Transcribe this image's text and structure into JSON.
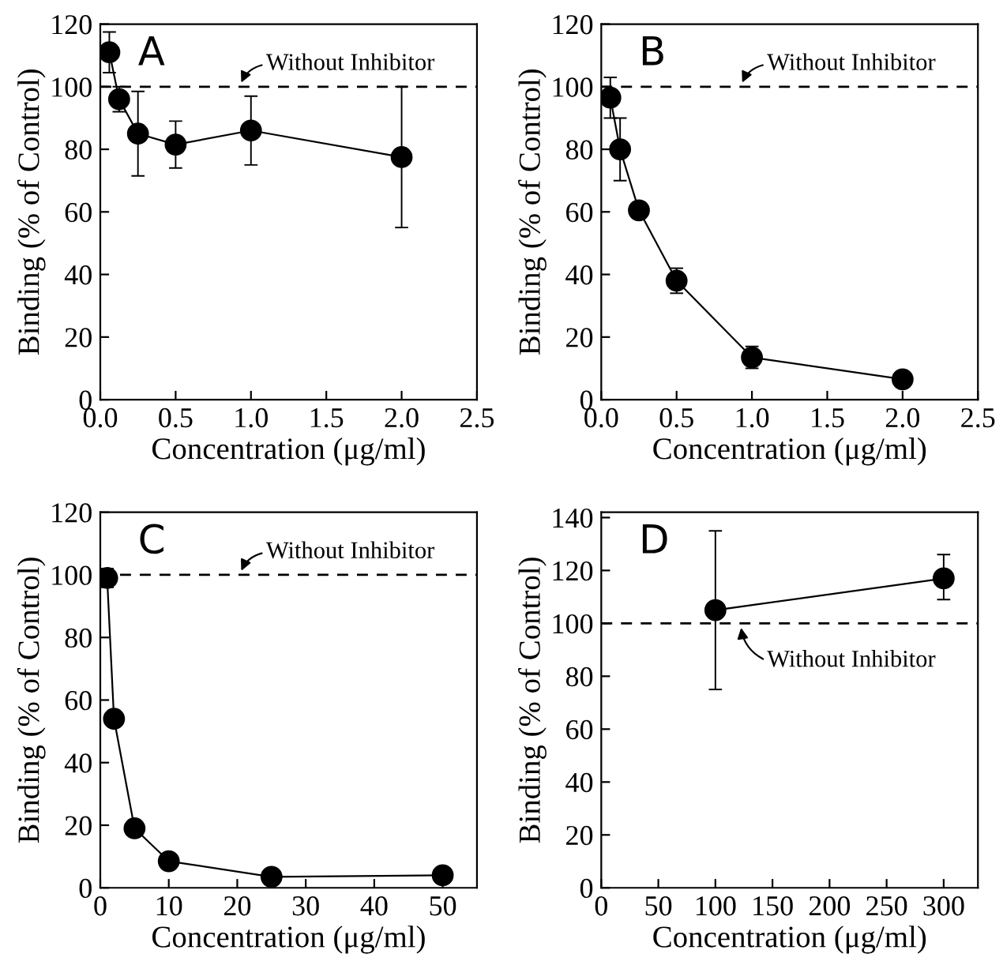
{
  "chart_data": [
    {
      "type": "line",
      "title": "A",
      "xlabel": "Concentration (μg/ml)",
      "ylabel": "Binding (% of Control)",
      "marker": "circle",
      "line_style": "solid",
      "grid": false,
      "series": [
        {
          "color": "#000000",
          "x": [
            0.06,
            0.125,
            0.25,
            0.5,
            1.0,
            2.0
          ],
          "values": [
            111,
            96,
            85,
            81.5,
            86,
            77.5
          ],
          "errors": [
            6.5,
            4,
            13.5,
            7.5,
            11,
            22.5
          ]
        }
      ],
      "xlim": [
        0,
        2.5
      ],
      "xticks": [
        {
          "value": 0,
          "label": "0.0"
        },
        0.5,
        {
          "value": 1,
          "label": "1.0"
        },
        1.5,
        {
          "value": 2,
          "label": "2.0"
        },
        2.5
      ],
      "ylim": [
        0,
        120
      ],
      "yticks": [
        0,
        20,
        40,
        60,
        80,
        100,
        120
      ],
      "ref_lines": [
        {
          "axis": "y",
          "value": 100,
          "label": "Without Inhibitor",
          "color": "#000000",
          "line_style": "dashed"
        }
      ]
    },
    {
      "type": "line",
      "title": "B",
      "xlabel": "Concentration (μg/ml)",
      "ylabel": "Binding (% of Control)",
      "marker": "circle",
      "line_style": "solid",
      "grid": false,
      "series": [
        {
          "color": "#000000",
          "x": [
            0.06,
            0.125,
            0.25,
            0.5,
            1.0,
            2.0
          ],
          "values": [
            96.5,
            80,
            60.5,
            38,
            13.5,
            6.5
          ],
          "errors": [
            6.5,
            10,
            null,
            4,
            3.5,
            null
          ]
        }
      ],
      "xlim": [
        0,
        2.5
      ],
      "xticks": [
        {
          "value": 0,
          "label": "0.0"
        },
        0.5,
        {
          "value": 1,
          "label": "1.0"
        },
        1.5,
        {
          "value": 2,
          "label": "2.0"
        },
        2.5
      ],
      "ylim": [
        0,
        120
      ],
      "yticks": [
        0,
        20,
        40,
        60,
        80,
        100,
        120
      ],
      "ref_lines": [
        {
          "axis": "y",
          "value": 100,
          "label": "Without Inhibitor",
          "color": "#000000",
          "line_style": "dashed"
        }
      ]
    },
    {
      "type": "line",
      "title": "C",
      "xlabel": "Concentration (μg/ml)",
      "ylabel": "Binding (% of Control)",
      "marker": "circle",
      "line_style": "solid",
      "grid": false,
      "series": [
        {
          "color": "#000000",
          "x": [
            1,
            2,
            5,
            10,
            25,
            50
          ],
          "values": [
            99,
            54,
            19,
            8.5,
            3.5,
            4
          ],
          "errors": [
            3,
            null,
            null,
            null,
            null,
            null
          ]
        }
      ],
      "xlim": [
        0,
        55
      ],
      "xticks": [
        0,
        10,
        20,
        30,
        40,
        50
      ],
      "ylim": [
        0,
        120
      ],
      "yticks": [
        0,
        20,
        40,
        60,
        80,
        100,
        120
      ],
      "ref_lines": [
        {
          "axis": "y",
          "value": 100,
          "label": "Without Inhibitor",
          "color": "#000000",
          "line_style": "dashed"
        }
      ]
    },
    {
      "type": "line",
      "title": "D",
      "xlabel": "Concentration (μg/ml)",
      "ylabel": "Binding (% of Control)",
      "marker": "circle",
      "line_style": "solid",
      "grid": false,
      "series": [
        {
          "color": "#000000",
          "x": [
            100,
            300
          ],
          "values": [
            105,
            117
          ],
          "errors": [
            [
              75,
              135
            ],
            [
              109,
              126
            ]
          ]
        }
      ],
      "xlim": [
        0,
        330
      ],
      "xticks": [
        0,
        50,
        100,
        150,
        200,
        250,
        300
      ],
      "ylim": [
        0,
        142
      ],
      "yticks": [
        0,
        20,
        40,
        60,
        80,
        100,
        120,
        140
      ],
      "ref_lines": [
        {
          "axis": "y",
          "value": 100,
          "label": "Without Inhibitor",
          "color": "#000000",
          "line_style": "dashed"
        }
      ]
    }
  ]
}
